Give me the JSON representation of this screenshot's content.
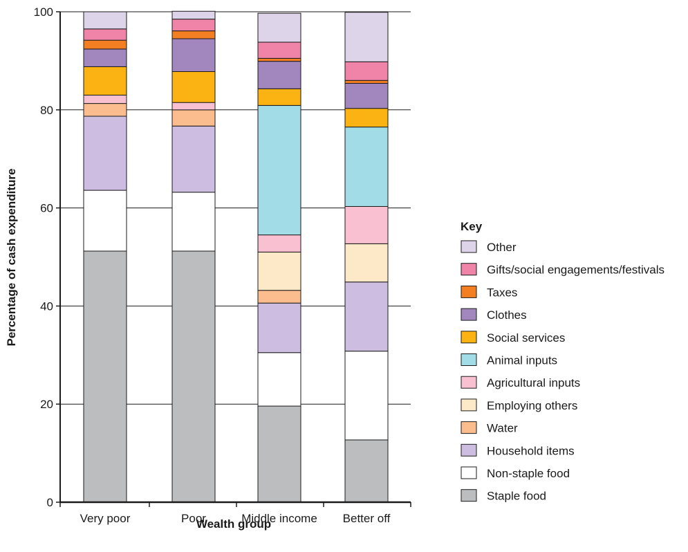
{
  "chart_data": {
    "type": "bar",
    "stacked": true,
    "categories": [
      "Very poor",
      "Poor",
      "Middle income",
      "Better off"
    ],
    "xlabel": "Wealth group",
    "ylabel": "Percentage of cash expenditure",
    "ylim": [
      0,
      100
    ],
    "yticks": [
      0,
      20,
      40,
      60,
      80,
      100
    ],
    "grid": true,
    "legend_title": "Key",
    "legend_position": "right",
    "series": [
      {
        "name": "Staple food",
        "color": "#bcbdbf",
        "values": [
          51.2,
          51.2,
          19.6,
          12.7
        ]
      },
      {
        "name": "Non-staple food",
        "color": "#ffffff",
        "values": [
          12.4,
          12.0,
          10.9,
          18.1
        ]
      },
      {
        "name": "Household items",
        "color": "#cdbde0",
        "values": [
          15.1,
          13.5,
          10.1,
          14.1
        ]
      },
      {
        "name": "Water",
        "color": "#fbbd8e",
        "values": [
          2.6,
          3.3,
          2.6,
          0.0
        ]
      },
      {
        "name": "Employing others",
        "color": "#fde8c8",
        "values": [
          0.0,
          0.0,
          7.8,
          7.8
        ]
      },
      {
        "name": "Agricultural inputs",
        "color": "#f9c0d2",
        "values": [
          1.7,
          1.5,
          3.5,
          7.6
        ]
      },
      {
        "name": "Animal inputs",
        "color": "#a2dde7",
        "values": [
          0.0,
          0.0,
          26.4,
          16.2
        ]
      },
      {
        "name": "Social services",
        "color": "#fbb314",
        "values": [
          5.8,
          6.3,
          3.4,
          3.8
        ]
      },
      {
        "name": "Clothes",
        "color": "#a287bf",
        "values": [
          3.6,
          6.7,
          5.6,
          5.1
        ]
      },
      {
        "name": "Taxes",
        "color": "#f47f22",
        "values": [
          1.8,
          1.6,
          0.6,
          0.6
        ]
      },
      {
        "name": "Gifts/social engagements/festivals",
        "color": "#f084a8",
        "values": [
          2.3,
          2.4,
          3.3,
          3.8
        ]
      },
      {
        "name": "Other",
        "color": "#ded4ea",
        "values": [
          3.5,
          1.6,
          5.9,
          10.1
        ]
      }
    ]
  }
}
